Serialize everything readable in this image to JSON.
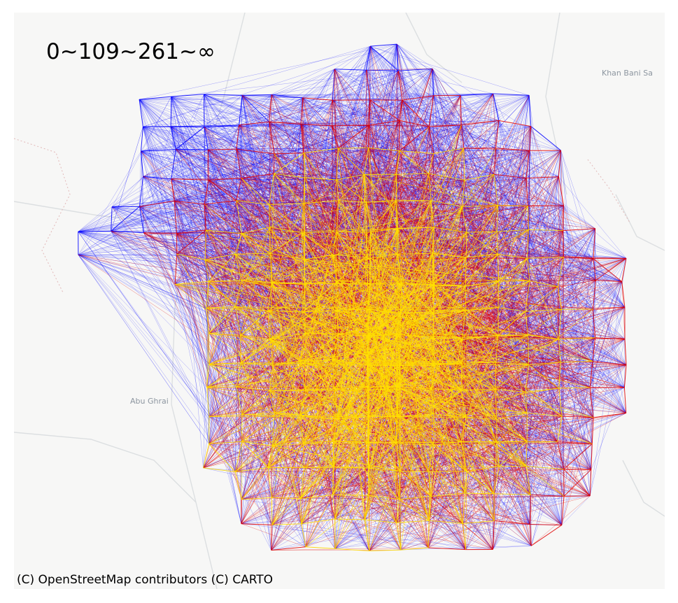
{
  "legend": {
    "title": "0~109~261~∞"
  },
  "place_labels": {
    "khan_bani_saad": "Khan Bani Sa",
    "abu_ghraib": "Abu Ghrai"
  },
  "attribution": "(C) OpenStreetMap contributors (C) CARTO",
  "flow_classes": [
    {
      "range": "0~109",
      "color": "#0000ff"
    },
    {
      "range": "109~261",
      "color": "#e00000"
    },
    {
      "range": "261~∞",
      "color": "#ffe000"
    }
  ],
  "basemap": {
    "style": "light-gray",
    "background": "#f7f7f6",
    "road_color": "#d9dcde"
  }
}
